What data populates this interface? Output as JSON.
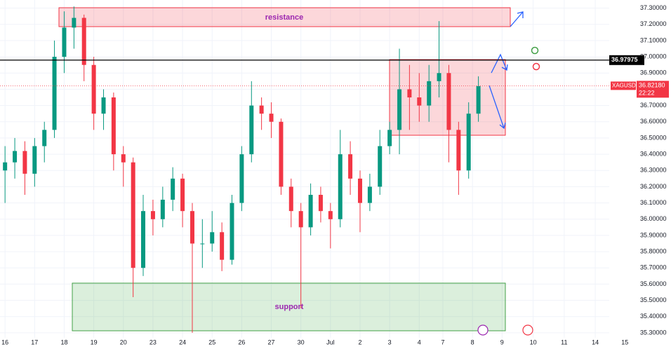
{
  "chart_data": {
    "type": "candlestick",
    "symbol": "XAGUSD",
    "grid": true,
    "up_color": "#089981",
    "down_color": "#f23645",
    "x": [
      0,
      0.33,
      0.67,
      1,
      1.33,
      1.67,
      2,
      2.33,
      2.67,
      3,
      3.33,
      3.67,
      4,
      4.33,
      4.67,
      5,
      5.33,
      5.67,
      6,
      6.33,
      6.67,
      7,
      7.33,
      7.67,
      8,
      8.33,
      8.67,
      9,
      9.33,
      9.67,
      10,
      10.33,
      10.67,
      11,
      11.33,
      11.67,
      12,
      12.33,
      12.67,
      13,
      13.33,
      13.67,
      14,
      14.33,
      14.67,
      15,
      15.33,
      15.67,
      16
    ],
    "ohlc": [
      [
        36.3,
        36.45,
        36.1,
        36.35
      ],
      [
        36.35,
        36.5,
        36.25,
        36.42
      ],
      [
        36.42,
        36.48,
        36.15,
        36.28
      ],
      [
        36.28,
        36.5,
        36.2,
        36.45
      ],
      [
        36.45,
        36.6,
        36.35,
        36.55
      ],
      [
        36.55,
        37.1,
        36.5,
        37.0
      ],
      [
        37.0,
        37.28,
        36.9,
        37.18
      ],
      [
        37.18,
        37.31,
        37.05,
        37.24
      ],
      [
        37.24,
        37.26,
        36.85,
        36.95
      ],
      [
        36.95,
        37.0,
        36.55,
        36.65
      ],
      [
        36.65,
        36.8,
        36.55,
        36.75
      ],
      [
        36.75,
        36.78,
        36.3,
        36.4
      ],
      [
        36.4,
        36.45,
        36.2,
        36.35
      ],
      [
        36.35,
        36.38,
        35.52,
        35.7
      ],
      [
        35.7,
        36.15,
        35.65,
        36.05
      ],
      [
        36.05,
        36.12,
        35.9,
        36.0
      ],
      [
        36.0,
        36.2,
        35.95,
        36.12
      ],
      [
        36.12,
        36.32,
        36.05,
        36.25
      ],
      [
        36.25,
        36.28,
        35.95,
        36.05
      ],
      [
        36.05,
        36.1,
        35.3,
        35.85
      ],
      [
        35.85,
        36.0,
        35.7,
        35.85
      ],
      [
        35.85,
        36.05,
        35.8,
        35.92
      ],
      [
        35.92,
        35.98,
        35.68,
        35.75
      ],
      [
        35.75,
        36.15,
        35.72,
        36.1
      ],
      [
        36.1,
        36.45,
        36.05,
        36.4
      ],
      [
        36.4,
        36.85,
        36.35,
        36.7
      ],
      [
        36.7,
        36.75,
        36.55,
        36.65
      ],
      [
        36.65,
        36.72,
        36.5,
        36.6
      ],
      [
        36.6,
        36.62,
        36.15,
        36.2
      ],
      [
        36.2,
        36.25,
        35.95,
        36.05
      ],
      [
        36.05,
        36.1,
        35.45,
        35.95
      ],
      [
        35.95,
        36.22,
        35.9,
        36.15
      ],
      [
        36.15,
        36.2,
        35.98,
        36.05
      ],
      [
        36.05,
        36.1,
        35.82,
        36.0
      ],
      [
        36.0,
        36.55,
        35.95,
        36.4
      ],
      [
        36.4,
        36.48,
        36.15,
        36.25
      ],
      [
        36.25,
        36.3,
        35.92,
        36.1
      ],
      [
        36.1,
        36.28,
        36.05,
        36.2
      ],
      [
        36.2,
        36.55,
        36.15,
        36.45
      ],
      [
        36.45,
        36.6,
        36.4,
        36.55
      ],
      [
        36.55,
        37.05,
        36.4,
        36.8
      ],
      [
        36.8,
        36.95,
        36.55,
        36.75
      ],
      [
        36.75,
        36.9,
        36.6,
        36.7
      ],
      [
        36.7,
        36.95,
        36.6,
        36.85
      ],
      [
        36.85,
        37.22,
        36.75,
        36.9
      ],
      [
        36.9,
        36.95,
        36.35,
        36.55
      ],
      [
        36.55,
        36.6,
        36.15,
        36.3
      ],
      [
        36.3,
        36.72,
        36.25,
        36.65
      ],
      [
        36.65,
        36.88,
        36.6,
        36.82
      ]
    ],
    "xlim": [
      -0.17,
      21.3
    ],
    "xticks": [
      {
        "value": 0,
        "label": "16"
      },
      {
        "value": 1,
        "label": "17"
      },
      {
        "value": 2,
        "label": "18"
      },
      {
        "value": 3,
        "label": "19"
      },
      {
        "value": 4,
        "label": "20"
      },
      {
        "value": 5,
        "label": "23"
      },
      {
        "value": 6,
        "label": "24"
      },
      {
        "value": 7,
        "label": "25"
      },
      {
        "value": 8,
        "label": "26"
      },
      {
        "value": 9,
        "label": "27"
      },
      {
        "value": 10,
        "label": "30"
      },
      {
        "value": 11,
        "label": "Jul"
      },
      {
        "value": 12,
        "label": "2"
      },
      {
        "value": 13,
        "label": "3"
      },
      {
        "value": 14,
        "label": "4"
      },
      {
        "value": 14.8,
        "label": "7"
      },
      {
        "value": 15.8,
        "label": "8"
      },
      {
        "value": 16.8,
        "label": "9"
      },
      {
        "value": 17.85,
        "label": "10"
      },
      {
        "value": 18.9,
        "label": "11"
      },
      {
        "value": 19.95,
        "label": "14"
      },
      {
        "value": 20.95,
        "label": "15"
      }
    ],
    "ylim": [
      35.2695,
      37.35
    ],
    "yticks": [
      {
        "value": 35.3,
        "label": "35.30000"
      },
      {
        "value": 35.4,
        "label": "35.40000"
      },
      {
        "value": 35.5,
        "label": "35.50000"
      },
      {
        "value": 35.6,
        "label": "35.60000"
      },
      {
        "value": 35.7,
        "label": "35.70000"
      },
      {
        "value": 35.8,
        "label": "35.80000"
      },
      {
        "value": 35.9,
        "label": "35.90000"
      },
      {
        "value": 36.0,
        "label": "36.00000"
      },
      {
        "value": 36.1,
        "label": "36.10000"
      },
      {
        "value": 36.2,
        "label": "36.20000"
      },
      {
        "value": 36.3,
        "label": "36.30000"
      },
      {
        "value": 36.4,
        "label": "36.40000"
      },
      {
        "value": 36.5,
        "label": "36.50000"
      },
      {
        "value": 36.6,
        "label": "36.60000"
      },
      {
        "value": 36.7,
        "label": "36.70000"
      },
      {
        "value": 36.8,
        "label": "36.80000"
      },
      {
        "value": 36.9,
        "label": "36.90000"
      },
      {
        "value": 37.0,
        "label": "37.00000"
      },
      {
        "value": 37.1,
        "label": "37.10000"
      },
      {
        "value": 37.2,
        "label": "37.20000"
      },
      {
        "value": 37.3,
        "label": "37.30000"
      }
    ],
    "level": {
      "value": 36.97975,
      "label": "36.97975"
    },
    "last_price": {
      "value": 36.8218,
      "label": "36.82180",
      "countdown": "22:22"
    },
    "annotations": {
      "resistance": "resistance",
      "support": "support"
    }
  }
}
